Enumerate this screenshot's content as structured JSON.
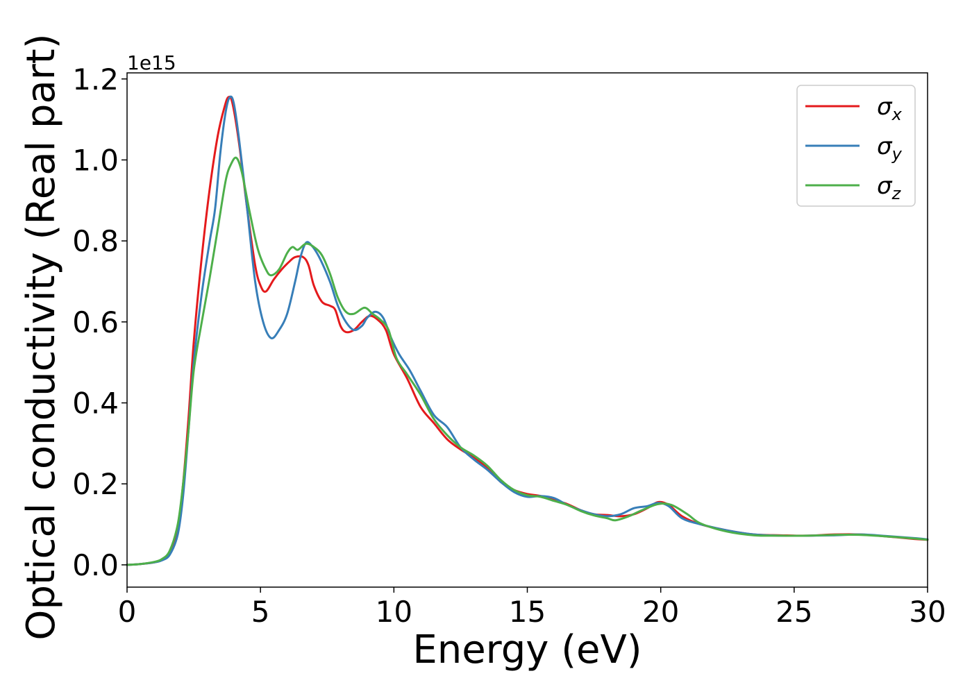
{
  "chart_data": {
    "type": "line",
    "title": "",
    "xlabel": "Energy (eV)",
    "ylabel": "Optical conductivity (Real part)",
    "y_offset_label": "1e15",
    "xlim": [
      0,
      30
    ],
    "ylim": [
      -0.055,
      1.215
    ],
    "x_ticks": [
      0,
      5,
      10,
      15,
      20,
      25,
      30
    ],
    "x_tick_labels": [
      "0",
      "5",
      "10",
      "15",
      "20",
      "25",
      "30"
    ],
    "y_ticks": [
      0.0,
      0.2,
      0.4,
      0.6,
      0.8,
      1.0,
      1.2
    ],
    "y_tick_labels": [
      "0.0",
      "0.2",
      "0.4",
      "0.6",
      "0.8",
      "1.0",
      "1.2"
    ],
    "grid": false,
    "legend_position": "top-right",
    "series": [
      {
        "name": "σx",
        "symbol": "σ",
        "subscript": "x",
        "color": "#e41a1c",
        "points": [
          [
            0,
            0
          ],
          [
            0.5,
            0.002
          ],
          [
            1.0,
            0.006
          ],
          [
            1.3,
            0.012
          ],
          [
            1.6,
            0.03
          ],
          [
            1.9,
            0.09
          ],
          [
            2.1,
            0.2
          ],
          [
            2.3,
            0.36
          ],
          [
            2.5,
            0.55
          ],
          [
            2.8,
            0.76
          ],
          [
            3.1,
            0.93
          ],
          [
            3.4,
            1.06
          ],
          [
            3.65,
            1.13
          ],
          [
            3.8,
            1.155
          ],
          [
            3.95,
            1.14
          ],
          [
            4.2,
            1.04
          ],
          [
            4.5,
            0.88
          ],
          [
            4.8,
            0.74
          ],
          [
            5.0,
            0.69
          ],
          [
            5.2,
            0.675
          ],
          [
            5.5,
            0.705
          ],
          [
            5.8,
            0.73
          ],
          [
            6.1,
            0.75
          ],
          [
            6.3,
            0.76
          ],
          [
            6.6,
            0.76
          ],
          [
            6.8,
            0.74
          ],
          [
            7.0,
            0.69
          ],
          [
            7.3,
            0.65
          ],
          [
            7.6,
            0.64
          ],
          [
            7.8,
            0.63
          ],
          [
            8.0,
            0.59
          ],
          [
            8.2,
            0.575
          ],
          [
            8.5,
            0.58
          ],
          [
            8.8,
            0.6
          ],
          [
            9.1,
            0.615
          ],
          [
            9.4,
            0.605
          ],
          [
            9.7,
            0.58
          ],
          [
            10.0,
            0.52
          ],
          [
            10.5,
            0.46
          ],
          [
            11.0,
            0.39
          ],
          [
            11.5,
            0.35
          ],
          [
            12.0,
            0.31
          ],
          [
            12.5,
            0.285
          ],
          [
            13.0,
            0.265
          ],
          [
            13.5,
            0.24
          ],
          [
            14.0,
            0.205
          ],
          [
            14.5,
            0.185
          ],
          [
            15.0,
            0.175
          ],
          [
            15.5,
            0.17
          ],
          [
            16.0,
            0.16
          ],
          [
            16.5,
            0.15
          ],
          [
            17.0,
            0.135
          ],
          [
            17.5,
            0.125
          ],
          [
            18.0,
            0.123
          ],
          [
            18.5,
            0.12
          ],
          [
            19.0,
            0.125
          ],
          [
            19.5,
            0.14
          ],
          [
            19.9,
            0.155
          ],
          [
            20.3,
            0.148
          ],
          [
            20.8,
            0.12
          ],
          [
            21.5,
            0.1
          ],
          [
            22.5,
            0.085
          ],
          [
            23.5,
            0.075
          ],
          [
            24.5,
            0.073
          ],
          [
            25.5,
            0.072
          ],
          [
            26.5,
            0.075
          ],
          [
            27.5,
            0.075
          ],
          [
            28.5,
            0.07
          ],
          [
            29.5,
            0.064
          ],
          [
            30,
            0.062
          ]
        ]
      },
      {
        "name": "σy",
        "symbol": "σ",
        "subscript": "y",
        "color": "#377eb8",
        "points": [
          [
            0,
            0
          ],
          [
            0.5,
            0.002
          ],
          [
            1.0,
            0.006
          ],
          [
            1.3,
            0.011
          ],
          [
            1.6,
            0.025
          ],
          [
            1.9,
            0.075
          ],
          [
            2.1,
            0.17
          ],
          [
            2.3,
            0.33
          ],
          [
            2.5,
            0.5
          ],
          [
            2.8,
            0.67
          ],
          [
            3.1,
            0.8
          ],
          [
            3.3,
            0.88
          ],
          [
            3.5,
            1.02
          ],
          [
            3.7,
            1.12
          ],
          [
            3.85,
            1.155
          ],
          [
            4.0,
            1.14
          ],
          [
            4.2,
            1.05
          ],
          [
            4.5,
            0.88
          ],
          [
            4.8,
            0.7
          ],
          [
            5.1,
            0.6
          ],
          [
            5.4,
            0.56
          ],
          [
            5.7,
            0.58
          ],
          [
            6.0,
            0.62
          ],
          [
            6.3,
            0.7
          ],
          [
            6.5,
            0.76
          ],
          [
            6.7,
            0.795
          ],
          [
            6.9,
            0.79
          ],
          [
            7.2,
            0.76
          ],
          [
            7.6,
            0.7
          ],
          [
            7.9,
            0.64
          ],
          [
            8.2,
            0.6
          ],
          [
            8.5,
            0.58
          ],
          [
            8.8,
            0.59
          ],
          [
            9.0,
            0.61
          ],
          [
            9.3,
            0.625
          ],
          [
            9.6,
            0.61
          ],
          [
            9.9,
            0.56
          ],
          [
            10.2,
            0.52
          ],
          [
            10.6,
            0.48
          ],
          [
            11.0,
            0.43
          ],
          [
            11.5,
            0.37
          ],
          [
            12.0,
            0.34
          ],
          [
            12.5,
            0.29
          ],
          [
            13.0,
            0.26
          ],
          [
            13.5,
            0.235
          ],
          [
            14.0,
            0.205
          ],
          [
            14.5,
            0.18
          ],
          [
            15.0,
            0.168
          ],
          [
            15.5,
            0.17
          ],
          [
            16.0,
            0.165
          ],
          [
            16.5,
            0.148
          ],
          [
            17.0,
            0.135
          ],
          [
            17.5,
            0.125
          ],
          [
            18.0,
            0.12
          ],
          [
            18.5,
            0.125
          ],
          [
            19.0,
            0.14
          ],
          [
            19.5,
            0.145
          ],
          [
            19.9,
            0.153
          ],
          [
            20.3,
            0.145
          ],
          [
            20.8,
            0.115
          ],
          [
            21.5,
            0.1
          ],
          [
            22.5,
            0.085
          ],
          [
            23.5,
            0.075
          ],
          [
            24.5,
            0.072
          ],
          [
            25.5,
            0.072
          ],
          [
            26.5,
            0.073
          ],
          [
            27.5,
            0.075
          ],
          [
            28.5,
            0.071
          ],
          [
            29.5,
            0.066
          ],
          [
            30,
            0.063
          ]
        ]
      },
      {
        "name": "σz",
        "symbol": "σ",
        "subscript": "z",
        "color": "#4daf4a",
        "points": [
          [
            0,
            0
          ],
          [
            0.5,
            0.002
          ],
          [
            1.0,
            0.007
          ],
          [
            1.3,
            0.014
          ],
          [
            1.6,
            0.035
          ],
          [
            1.9,
            0.1
          ],
          [
            2.1,
            0.2
          ],
          [
            2.3,
            0.33
          ],
          [
            2.5,
            0.48
          ],
          [
            2.8,
            0.6
          ],
          [
            3.1,
            0.71
          ],
          [
            3.4,
            0.83
          ],
          [
            3.7,
            0.95
          ],
          [
            3.9,
            0.99
          ],
          [
            4.1,
            1.005
          ],
          [
            4.3,
            0.97
          ],
          [
            4.6,
            0.87
          ],
          [
            4.9,
            0.78
          ],
          [
            5.2,
            0.73
          ],
          [
            5.4,
            0.715
          ],
          [
            5.7,
            0.73
          ],
          [
            6.0,
            0.77
          ],
          [
            6.2,
            0.785
          ],
          [
            6.4,
            0.778
          ],
          [
            6.7,
            0.793
          ],
          [
            7.0,
            0.785
          ],
          [
            7.3,
            0.765
          ],
          [
            7.6,
            0.72
          ],
          [
            7.9,
            0.66
          ],
          [
            8.2,
            0.625
          ],
          [
            8.5,
            0.62
          ],
          [
            8.9,
            0.635
          ],
          [
            9.2,
            0.62
          ],
          [
            9.5,
            0.605
          ],
          [
            9.8,
            0.58
          ],
          [
            10.1,
            0.51
          ],
          [
            10.5,
            0.47
          ],
          [
            11.0,
            0.42
          ],
          [
            11.5,
            0.36
          ],
          [
            12.0,
            0.32
          ],
          [
            12.5,
            0.29
          ],
          [
            13.0,
            0.27
          ],
          [
            13.5,
            0.245
          ],
          [
            14.0,
            0.21
          ],
          [
            14.5,
            0.185
          ],
          [
            15.0,
            0.172
          ],
          [
            15.5,
            0.168
          ],
          [
            16.0,
            0.158
          ],
          [
            16.5,
            0.148
          ],
          [
            17.0,
            0.133
          ],
          [
            17.5,
            0.122
          ],
          [
            18.0,
            0.115
          ],
          [
            18.3,
            0.11
          ],
          [
            18.8,
            0.12
          ],
          [
            19.3,
            0.135
          ],
          [
            19.9,
            0.15
          ],
          [
            20.4,
            0.148
          ],
          [
            21.0,
            0.125
          ],
          [
            21.5,
            0.102
          ],
          [
            22.5,
            0.082
          ],
          [
            23.5,
            0.073
          ],
          [
            24.5,
            0.072
          ],
          [
            25.5,
            0.072
          ],
          [
            26.5,
            0.074
          ],
          [
            27.5,
            0.074
          ],
          [
            28.5,
            0.07
          ],
          [
            29.5,
            0.065
          ],
          [
            30,
            0.062
          ]
        ]
      }
    ]
  }
}
